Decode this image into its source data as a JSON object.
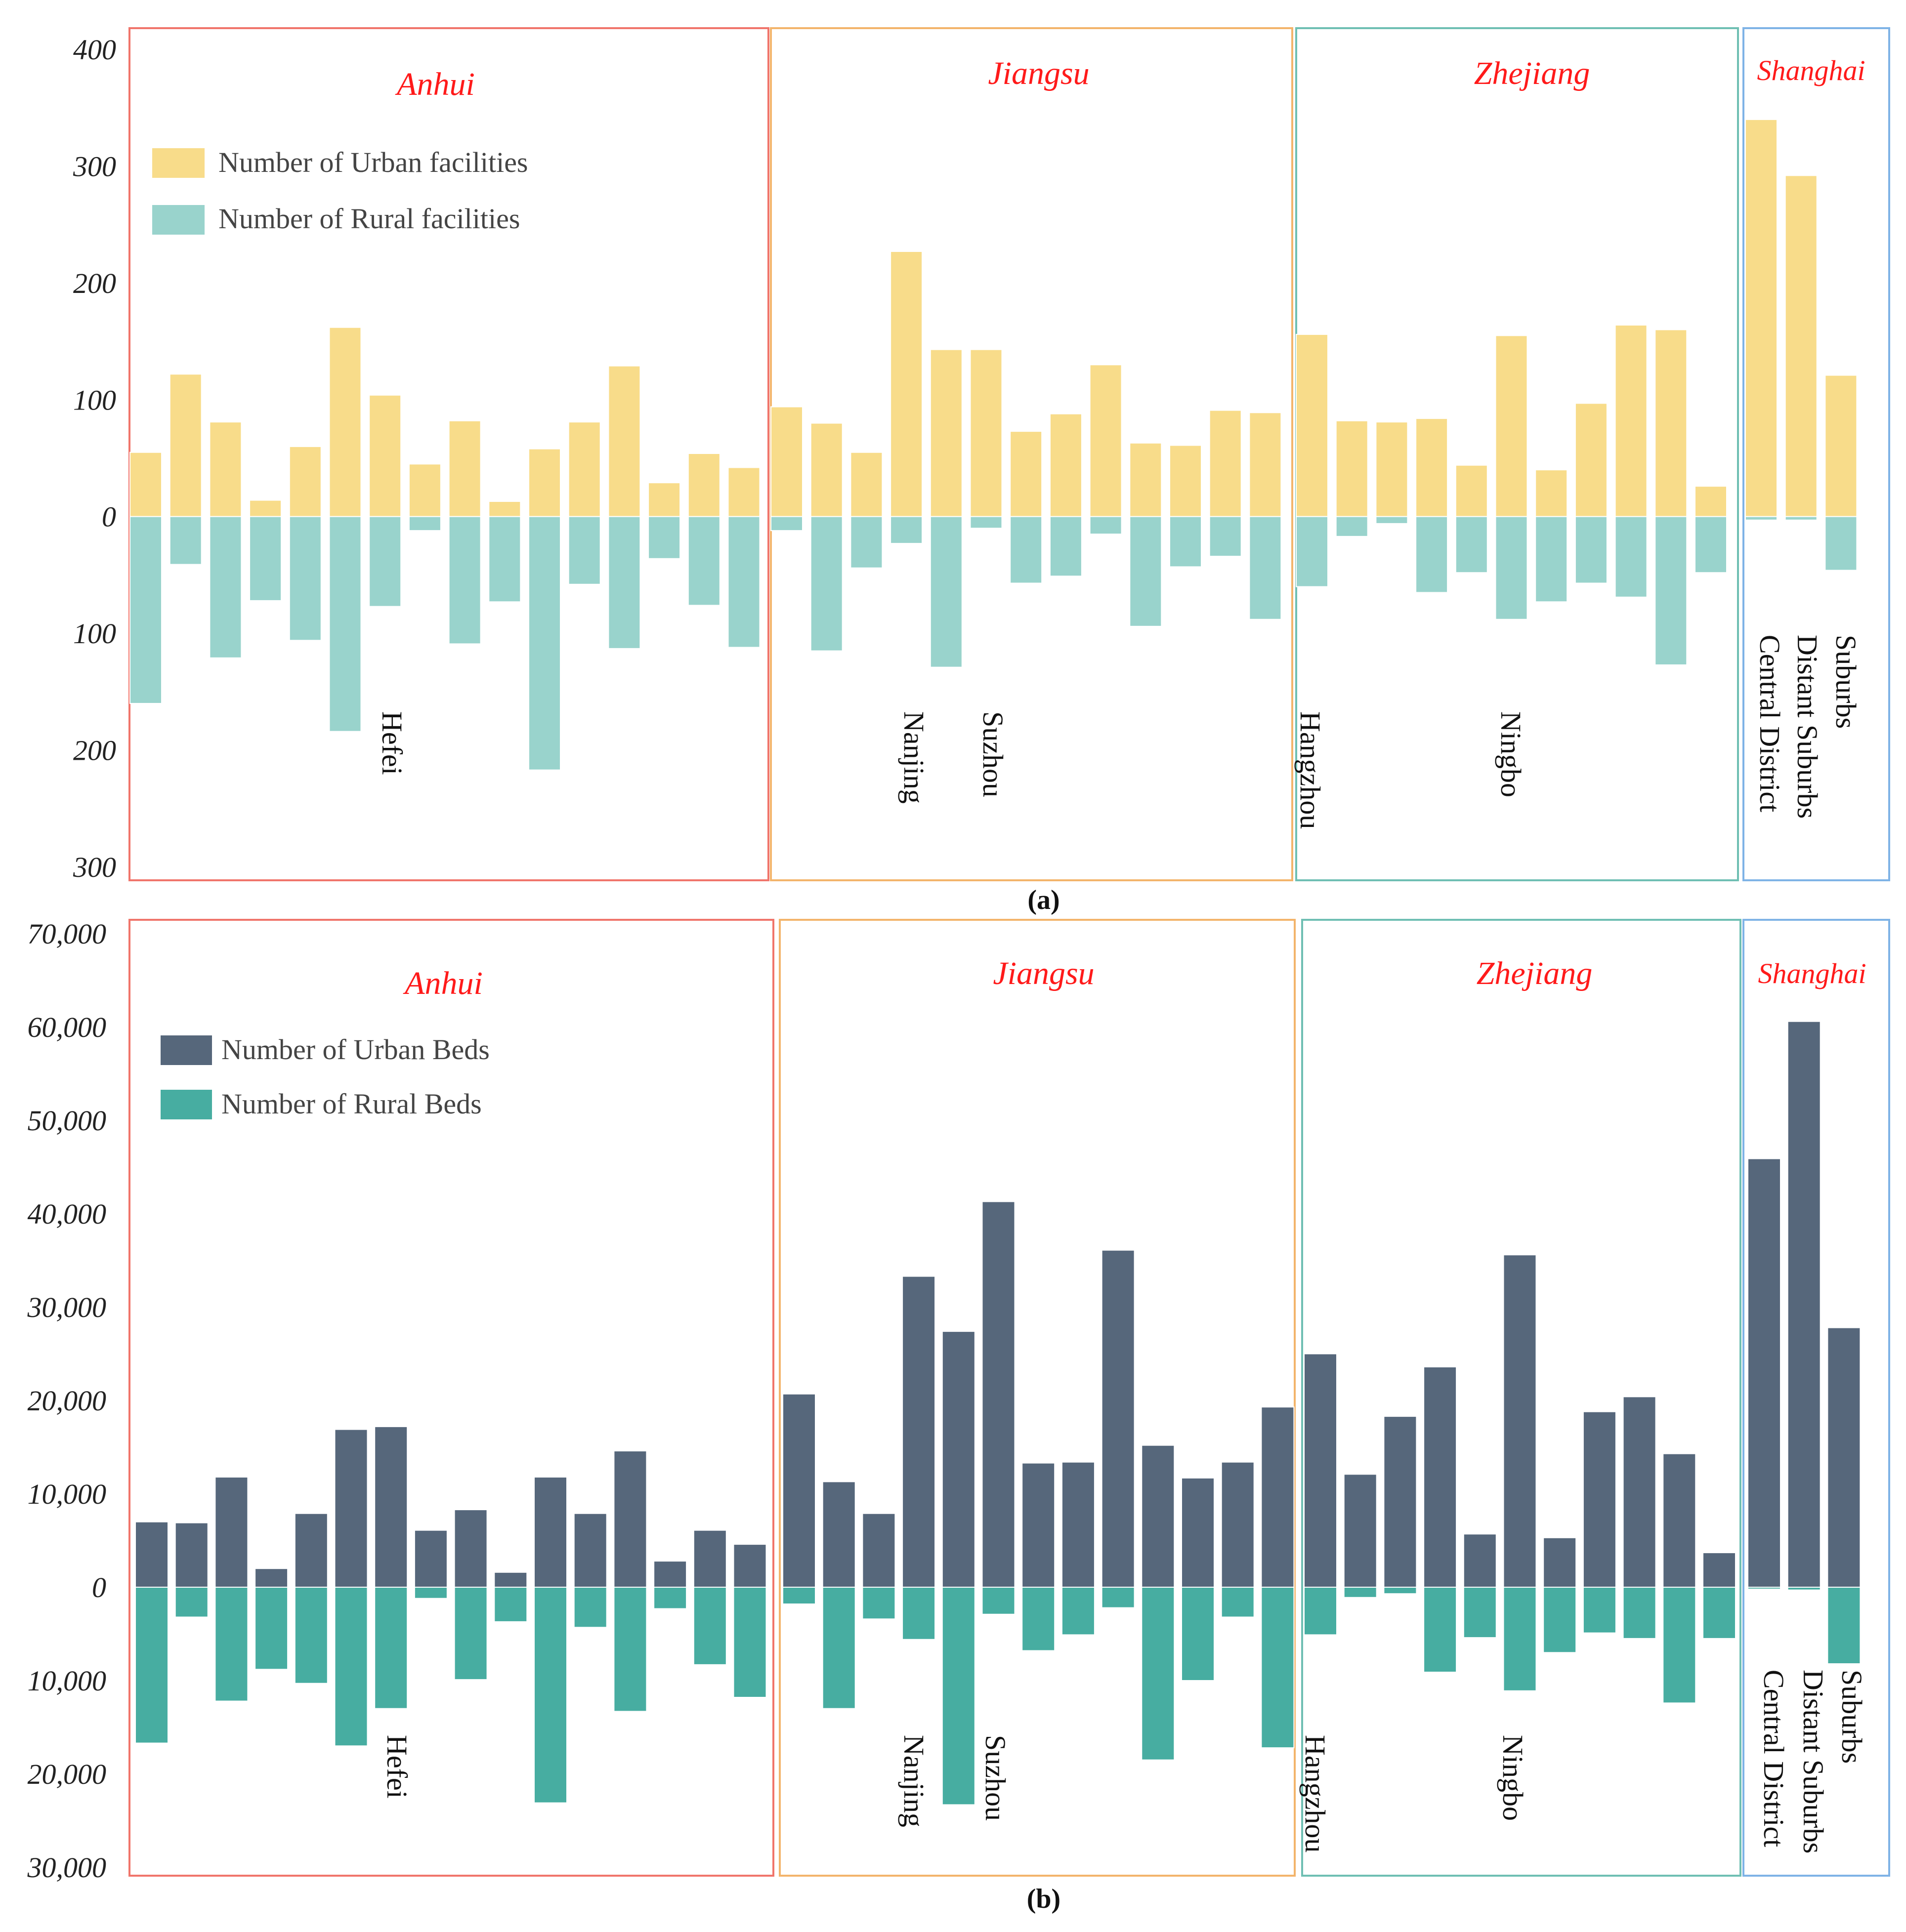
{
  "chart_data": [
    {
      "type": "bar",
      "panel_label": "(a)",
      "ylim": [
        -300,
        400
      ],
      "y_ticks": [
        400,
        300,
        200,
        100,
        0,
        -100,
        -200,
        -300
      ],
      "y_tick_labels": [
        "400",
        "300",
        "200",
        "100",
        "0",
        "100",
        "200",
        "300"
      ],
      "series": [
        {
          "name": "Number of Urban facilities",
          "color": "#f8dc8a"
        },
        {
          "name": "Number of Rural facilities",
          "color": "#99d3cc"
        }
      ],
      "groups": [
        {
          "name": "Anhui",
          "frame_color": "#f0756b",
          "urban": [
            55,
            122,
            81,
            14,
            60,
            162,
            104,
            45,
            82,
            13,
            58,
            81,
            129,
            29,
            54,
            42
          ],
          "rural": [
            160,
            41,
            121,
            72,
            106,
            184,
            77,
            12,
            109,
            73,
            217,
            58,
            113,
            36,
            76,
            112
          ]
        },
        {
          "name": "Jiangsu",
          "frame_color": "#f3b46b",
          "urban": [
            94,
            80,
            55,
            227,
            143,
            143,
            73,
            88,
            130,
            63,
            61,
            91,
            89
          ],
          "rural": [
            12,
            115,
            44,
            23,
            129,
            10,
            57,
            51,
            15,
            94,
            43,
            34,
            88
          ]
        },
        {
          "name": "Zhejiang",
          "frame_color": "#6fbfb3",
          "urban": [
            156,
            82,
            81,
            84,
            44,
            155,
            40,
            97,
            164,
            160,
            26
          ],
          "rural": [
            60,
            17,
            6,
            65,
            48,
            88,
            73,
            57,
            69,
            127,
            48
          ]
        },
        {
          "name": "Shanghai",
          "frame_color": "#7fb3e6",
          "urban": [
            340,
            292,
            121
          ],
          "rural": [
            3,
            3,
            46
          ]
        }
      ],
      "city_labels": [
        "Hefei",
        "Nanjing",
        "Suzhou",
        "Hangzhou",
        "Ningbo",
        "Central District",
        "Distant Suburbs",
        "Suburbs"
      ]
    },
    {
      "type": "bar",
      "panel_label": "(b)",
      "ylim": [
        -30000,
        70000
      ],
      "y_ticks": [
        70000,
        60000,
        50000,
        40000,
        30000,
        20000,
        10000,
        0,
        -10000,
        -20000,
        -30000
      ],
      "y_tick_labels": [
        "70,000",
        "60,000",
        "50,000",
        "40,000",
        "30,000",
        "20,000",
        "10,000",
        "0",
        "10,000",
        "20,000",
        "30,000"
      ],
      "series": [
        {
          "name": "Number of Urban Beds",
          "color": "#56677b"
        },
        {
          "name": "Number of Rural Beds",
          "color": "#47ada1"
        }
      ],
      "groups": [
        {
          "name": "Anhui",
          "frame_color": "#f0756b",
          "urban": [
            7000,
            6900,
            11800,
            2000,
            7900,
            16900,
            17200,
            6100,
            8300,
            1600,
            11800,
            7900,
            14600,
            2800,
            6100,
            4600
          ],
          "rural": [
            16700,
            3200,
            12200,
            8800,
            10300,
            17000,
            13000,
            1200,
            9900,
            3700,
            23100,
            4300,
            13300,
            2300,
            8300,
            11800
          ]
        },
        {
          "name": "Jiangsu",
          "frame_color": "#f3b46b",
          "urban": [
            20700,
            11300,
            7900,
            33300,
            27400,
            41300,
            13300,
            13400,
            36100,
            15200,
            11700,
            13400,
            19300
          ],
          "rural": [
            1800,
            13000,
            3400,
            5600,
            23300,
            2900,
            6800,
            5100,
            2200,
            18500,
            10000,
            3200,
            17200
          ]
        },
        {
          "name": "Zhejiang",
          "frame_color": "#6fbfb3",
          "urban": [
            25000,
            12100,
            18300,
            23600,
            5700,
            35600,
            5300,
            18800,
            20400,
            14300,
            3700
          ],
          "rural": [
            5100,
            1100,
            700,
            9100,
            5400,
            11100,
            7000,
            4900,
            5500,
            12400,
            5500
          ]
        },
        {
          "name": "Shanghai",
          "frame_color": "#7fb3e6",
          "urban": [
            45900,
            60600,
            27800
          ],
          "rural": [
            200,
            300,
            8200
          ]
        }
      ],
      "city_labels": [
        "Hefei",
        "Nanjing",
        "Suzhou",
        "Hangzhou",
        "Ningbo",
        "Central District",
        "Distant Suburbs",
        "Suburbs"
      ]
    }
  ]
}
